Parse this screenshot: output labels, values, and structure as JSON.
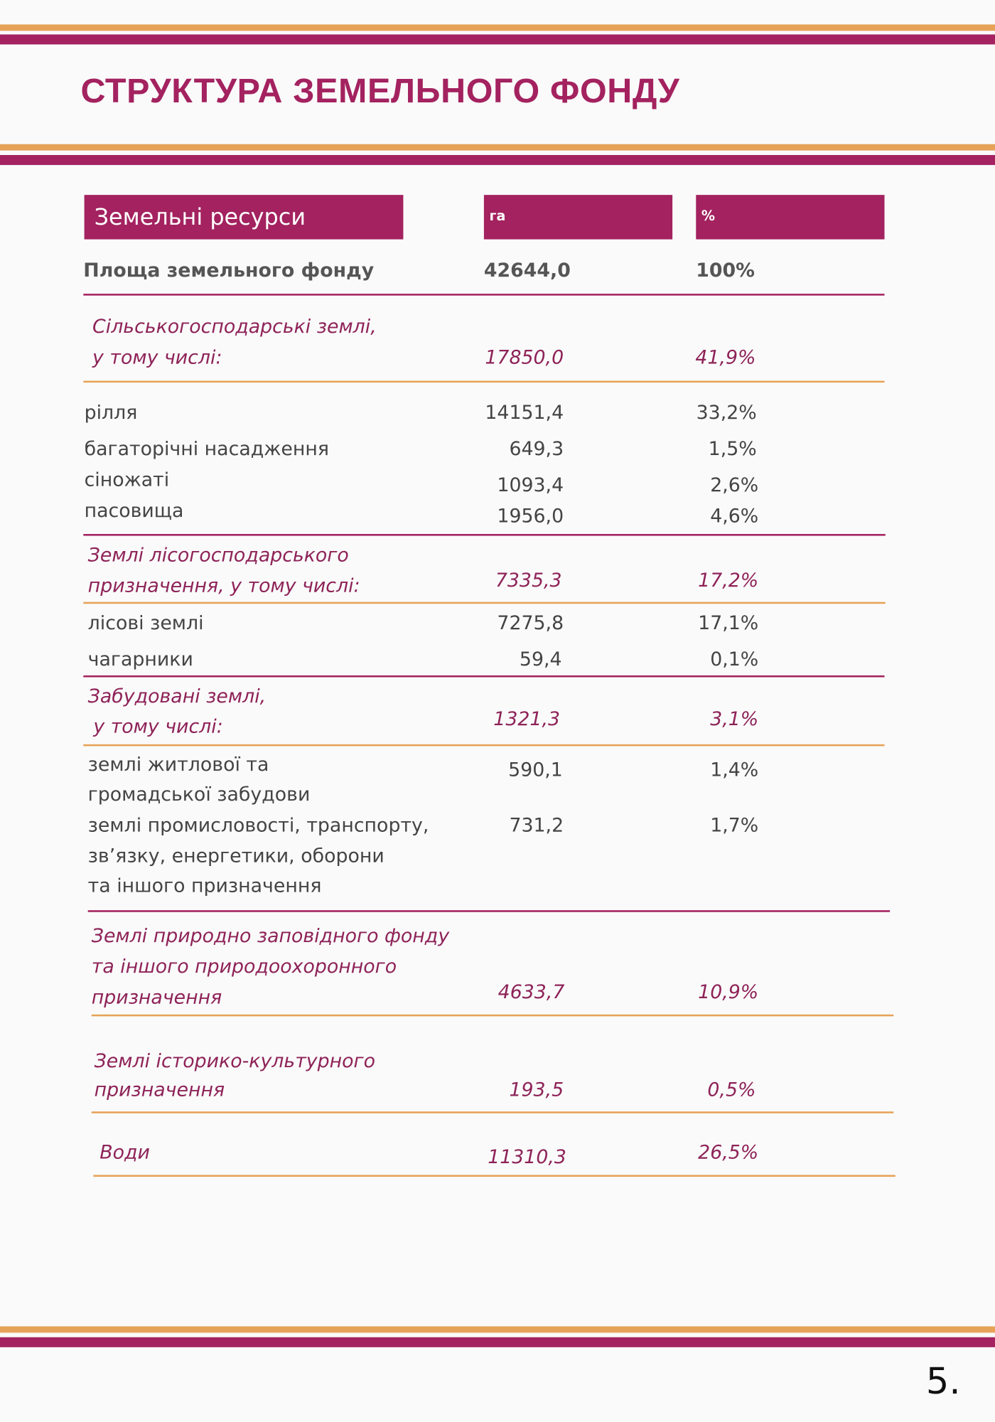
{
  "title": "СТРУКТУРА ЗЕМЕЛЬНОГО ФОНДУ",
  "colors": {
    "accent": "#a3225f",
    "secondary": "#e6a257"
  },
  "header": {
    "col1": "Земельні ресурси",
    "col2": "га",
    "col3": "%"
  },
  "total": {
    "label": "Площа земельного фонду",
    "ha": "42644,0",
    "pct": "100%"
  },
  "agri": {
    "label_line1": "Сільськогосподарські землі,",
    "label_line2": "у тому числі:",
    "ha": "17850,0",
    "pct": "41,9%",
    "items": [
      {
        "label": "рілля",
        "ha": "14151,4",
        "pct": "33,2%"
      },
      {
        "label": "багаторічні насадження",
        "ha": "649,3",
        "pct": "1,5%"
      },
      {
        "label": "сіножаті",
        "ha": "1093,4",
        "pct": "2,6%"
      },
      {
        "label": "пасовища",
        "ha": "1956,0",
        "pct": "4,6%"
      }
    ]
  },
  "forest": {
    "label_line1": "Землі лісогосподарського",
    "label_line2": "призначення, у тому числі:",
    "ha": "7335,3",
    "pct": "17,2%",
    "items": [
      {
        "label": "лісові землі",
        "ha": "7275,8",
        "pct": "17,1%"
      },
      {
        "label": "чагарники",
        "ha": "59,4",
        "pct": "0,1%"
      }
    ]
  },
  "built": {
    "label_line1": "Забудовані землі,",
    "label_line2": "у тому числі:",
    "ha": "1321,3",
    "pct": "3,1%",
    "items": [
      {
        "label_line1": "землі житлової та",
        "label_line2": "громадської забудови",
        "ha": "590,1",
        "pct": "1,4%"
      },
      {
        "label_line1": "землі промисловості, транспорту,",
        "label_line2": "зв’язку, енергетики, оборони",
        "label_line3": "та іншого призначення",
        "ha": "731,2",
        "pct": "1,7%"
      }
    ]
  },
  "nature": {
    "label_line1": "Землі природно заповідного фонду",
    "label_line2": "та іншого природоохоронного",
    "label_line3": "призначення",
    "ha": "4633,7",
    "pct": "10,9%"
  },
  "heritage": {
    "label_line1": "Землі історико-культурного",
    "label_line2": "призначення",
    "ha": "193,5",
    "pct": "0,5%"
  },
  "water": {
    "label": "Води",
    "ha": "11310,3",
    "pct": "26,5%"
  },
  "page_number": "5."
}
